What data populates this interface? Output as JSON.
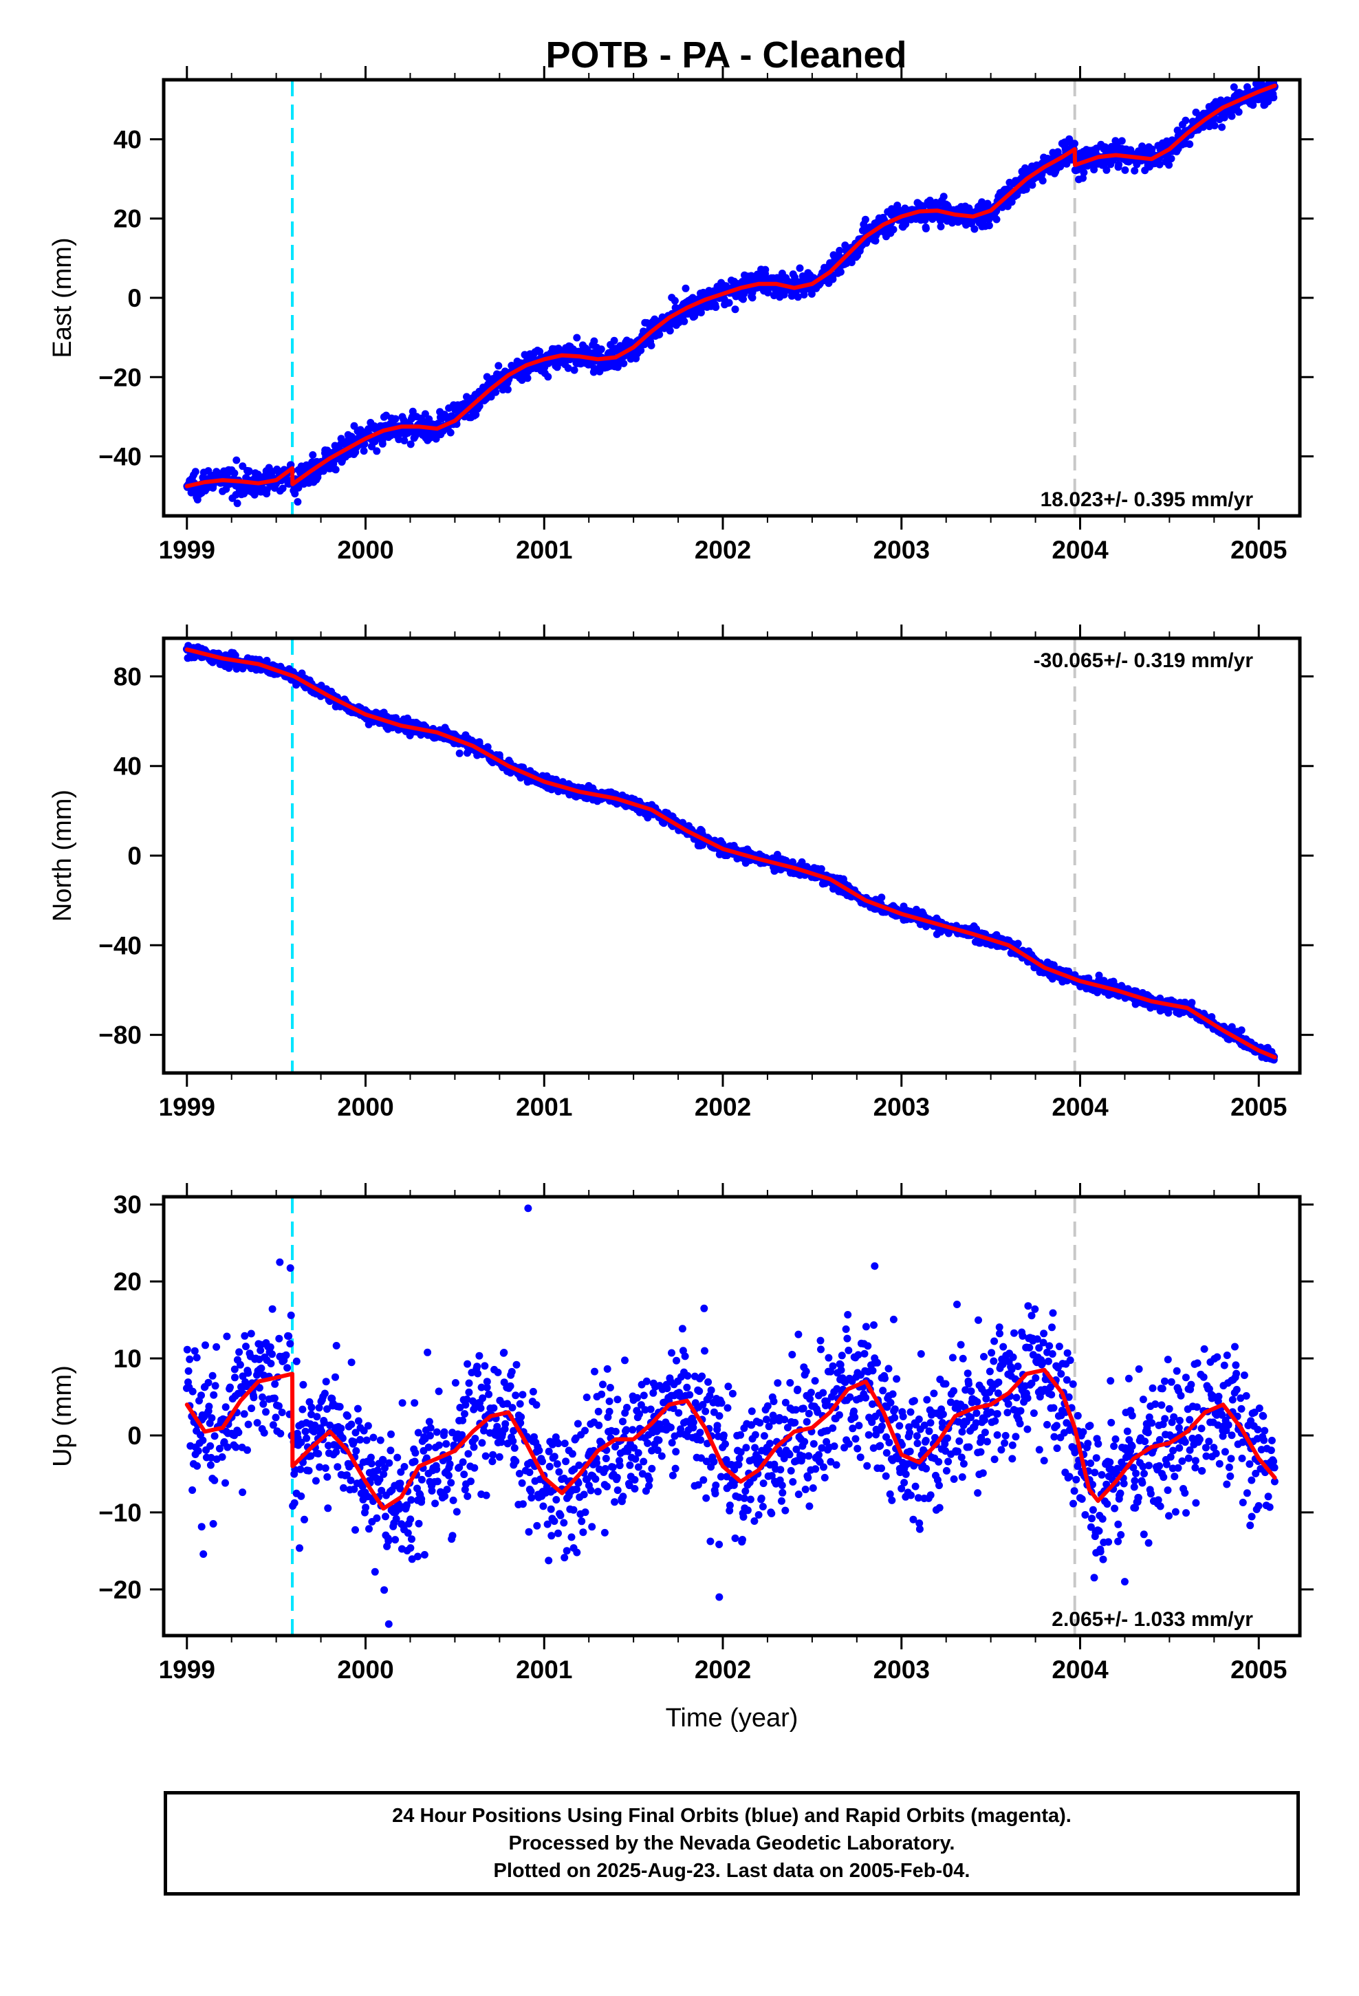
{
  "caption": {
    "lines": [
      "24 Hour Positions Using Final Orbits (blue) and Rapid Orbits (magenta).",
      "Processed by the Nevada Geodetic Laboratory.",
      "Plotted on 2025-Aug-23. Last data on 2005-Feb-04."
    ]
  },
  "chart_data": [
    {
      "type": "scatter",
      "title": "POTB  - PA - Cleaned",
      "ylabel": "East (mm)",
      "xlabel": "",
      "xlim": [
        1998.87,
        2005.23
      ],
      "ylim": [
        -55,
        55
      ],
      "xticks": [
        1999,
        2000,
        2001,
        2002,
        2003,
        2004,
        2005
      ],
      "xtick_labels": [
        "1999",
        "2000",
        "2001",
        "2002",
        "2003",
        "2004",
        "2005"
      ],
      "yticks": [
        -40,
        -20,
        0,
        20,
        40
      ],
      "ytick_labels": [
        "−40",
        "−20",
        "0",
        "20",
        "40"
      ],
      "rate_label": "18.023+/- 0.395 mm/yr",
      "rate_position": "bottom-right",
      "offset_lines": [
        {
          "x": 1999.59,
          "color": "#00e5ff",
          "style": "dashed"
        },
        {
          "x": 2003.97,
          "color": "#c8c8c8",
          "style": "dashed"
        }
      ],
      "colors": {
        "points": "#0000ff",
        "model": "#ff0000"
      },
      "model": {
        "x": [
          1999.0,
          1999.1,
          1999.2,
          1999.3,
          1999.4,
          1999.5,
          1999.59,
          1999.591,
          1999.7,
          1999.8,
          1999.9,
          2000.0,
          2000.1,
          2000.2,
          2000.3,
          2000.4,
          2000.5,
          2000.6,
          2000.7,
          2000.8,
          2000.9,
          2001.0,
          2001.1,
          2001.2,
          2001.3,
          2001.4,
          2001.5,
          2001.6,
          2001.7,
          2001.8,
          2001.9,
          2002.0,
          2002.1,
          2002.2,
          2002.3,
          2002.4,
          2002.5,
          2002.6,
          2002.7,
          2002.8,
          2002.9,
          2003.0,
          2003.1,
          2003.2,
          2003.3,
          2003.4,
          2003.5,
          2003.6,
          2003.7,
          2003.8,
          2003.9,
          2003.97,
          2003.971,
          2004.1,
          2004.2,
          2004.3,
          2004.4,
          2004.5,
          2004.6,
          2004.7,
          2004.8,
          2004.9,
          2005.0,
          2005.09
        ],
        "y": [
          -47.5,
          -46.5,
          -46.0,
          -46.3,
          -46.8,
          -46.0,
          -43.0,
          -47.0,
          -43.5,
          -40.5,
          -38.0,
          -35.5,
          -33.5,
          -32.5,
          -32.5,
          -33.0,
          -31.0,
          -27.0,
          -23.0,
          -19.5,
          -17.0,
          -15.5,
          -14.5,
          -14.8,
          -15.5,
          -15.0,
          -12.5,
          -8.5,
          -5.0,
          -2.5,
          -0.5,
          1.0,
          2.5,
          3.5,
          3.5,
          2.5,
          3.5,
          6.5,
          11.0,
          15.5,
          18.5,
          20.5,
          21.8,
          22.0,
          21.0,
          20.5,
          22.0,
          26.0,
          30.0,
          33.0,
          35.5,
          37.5,
          33.5,
          35.5,
          36.0,
          35.5,
          35.0,
          37.5,
          41.5,
          45.0,
          48.0,
          50.0,
          52.0,
          53.5
        ]
      },
      "scatter_spread_mm": 1.6
    },
    {
      "type": "scatter",
      "title": "",
      "ylabel": "North (mm)",
      "xlabel": "",
      "xlim": [
        1998.87,
        2005.23
      ],
      "ylim": [
        -97,
        97
      ],
      "xticks": [
        1999,
        2000,
        2001,
        2002,
        2003,
        2004,
        2005
      ],
      "xtick_labels": [
        "1999",
        "2000",
        "2001",
        "2002",
        "2003",
        "2004",
        "2005"
      ],
      "yticks": [
        -80,
        -40,
        0,
        40,
        80
      ],
      "ytick_labels": [
        "−80",
        "−40",
        "0",
        "40",
        "80"
      ],
      "rate_label": "-30.065+/- 0.319 mm/yr",
      "rate_position": "top-right",
      "offset_lines": [
        {
          "x": 1999.59,
          "color": "#00e5ff",
          "style": "dashed"
        },
        {
          "x": 2003.97,
          "color": "#c8c8c8",
          "style": "dashed"
        }
      ],
      "colors": {
        "points": "#0000ff",
        "model": "#ff0000"
      },
      "model": {
        "x": [
          1999.0,
          1999.2,
          1999.4,
          1999.6,
          1999.8,
          2000.0,
          2000.2,
          2000.4,
          2000.6,
          2000.8,
          2001.0,
          2001.2,
          2001.4,
          2001.6,
          2001.8,
          2002.0,
          2002.2,
          2002.4,
          2002.6,
          2002.8,
          2003.0,
          2003.2,
          2003.4,
          2003.6,
          2003.8,
          2004.0,
          2004.2,
          2004.4,
          2004.6,
          2004.8,
          2005.0,
          2005.09
        ],
        "y": [
          92.0,
          88.0,
          85.5,
          80.0,
          71.0,
          63.0,
          58.0,
          55.0,
          49.0,
          40.0,
          33.0,
          28.5,
          25.5,
          20.5,
          11.0,
          3.0,
          -1.5,
          -5.5,
          -10.5,
          -20.0,
          -26.0,
          -30.5,
          -35.0,
          -40.0,
          -50.0,
          -56.0,
          -60.0,
          -65.0,
          -68.0,
          -78.0,
          -87.0,
          -90.0
        ]
      },
      "scatter_spread_mm": 1.4
    },
    {
      "type": "scatter",
      "title": "",
      "ylabel": "Up (mm)",
      "xlabel": "Time (year)",
      "xlim": [
        1998.87,
        2005.23
      ],
      "ylim": [
        -26,
        31
      ],
      "xticks": [
        1999,
        2000,
        2001,
        2002,
        2003,
        2004,
        2005
      ],
      "xtick_labels": [
        "1999",
        "2000",
        "2001",
        "2002",
        "2003",
        "2004",
        "2005"
      ],
      "yticks": [
        -20,
        -10,
        0,
        10,
        20,
        30
      ],
      "ytick_labels": [
        "−20",
        "−10",
        "0",
        "10",
        "20",
        "30"
      ],
      "rate_label": "2.065+/- 1.033 mm/yr",
      "rate_position": "bottom-right",
      "offset_lines": [
        {
          "x": 1999.59,
          "color": "#00e5ff",
          "style": "dashed"
        },
        {
          "x": 2003.97,
          "color": "#c8c8c8",
          "style": "dashed"
        }
      ],
      "colors": {
        "points": "#0000ff",
        "model": "#ff0000"
      },
      "model": {
        "x": [
          1999.0,
          1999.1,
          1999.2,
          1999.3,
          1999.4,
          1999.5,
          1999.59,
          1999.591,
          1999.7,
          1999.8,
          1999.9,
          2000.0,
          2000.1,
          2000.2,
          2000.3,
          2000.4,
          2000.5,
          2000.6,
          2000.7,
          2000.8,
          2000.9,
          2001.0,
          2001.1,
          2001.2,
          2001.3,
          2001.4,
          2001.5,
          2001.6,
          2001.7,
          2001.8,
          2001.9,
          2002.0,
          2002.1,
          2002.2,
          2002.3,
          2002.4,
          2002.5,
          2002.6,
          2002.7,
          2002.8,
          2002.9,
          2003.0,
          2003.1,
          2003.2,
          2003.3,
          2003.4,
          2003.5,
          2003.6,
          2003.7,
          2003.8,
          2003.9,
          2003.97,
          2004.05,
          2004.1,
          2004.2,
          2004.3,
          2004.4,
          2004.5,
          2004.6,
          2004.7,
          2004.8,
          2004.9,
          2005.0,
          2005.09
        ],
        "y": [
          4.0,
          0.5,
          1.0,
          4.5,
          7.0,
          7.5,
          8.0,
          -4.0,
          -1.5,
          0.5,
          -2.0,
          -6.0,
          -9.5,
          -8.0,
          -4.0,
          -3.0,
          -2.0,
          0.5,
          2.5,
          3.0,
          -1.0,
          -5.5,
          -7.5,
          -5.0,
          -2.0,
          -0.5,
          -0.5,
          1.5,
          4.0,
          4.5,
          1.0,
          -4.0,
          -6.0,
          -4.5,
          -1.5,
          0.5,
          1.0,
          3.0,
          6.0,
          7.0,
          3.0,
          -2.5,
          -3.5,
          -1.0,
          2.5,
          3.5,
          4.0,
          5.5,
          8.0,
          8.5,
          5.5,
          1.0,
          -7.0,
          -8.5,
          -6.0,
          -3.0,
          -1.5,
          -1.0,
          0.5,
          3.0,
          4.0,
          1.0,
          -3.0,
          -5.5
        ]
      },
      "scatter_spread_mm": 4.5,
      "outliers": [
        {
          "x": 2000.91,
          "y": 29.5
        },
        {
          "x": 1999.52,
          "y": 22.5
        },
        {
          "x": 2002.85,
          "y": 22.0
        },
        {
          "x": 2001.98,
          "y": -21.0
        },
        {
          "x": 2000.13,
          "y": -24.5
        },
        {
          "x": 2004.25,
          "y": -19.0
        }
      ]
    }
  ]
}
